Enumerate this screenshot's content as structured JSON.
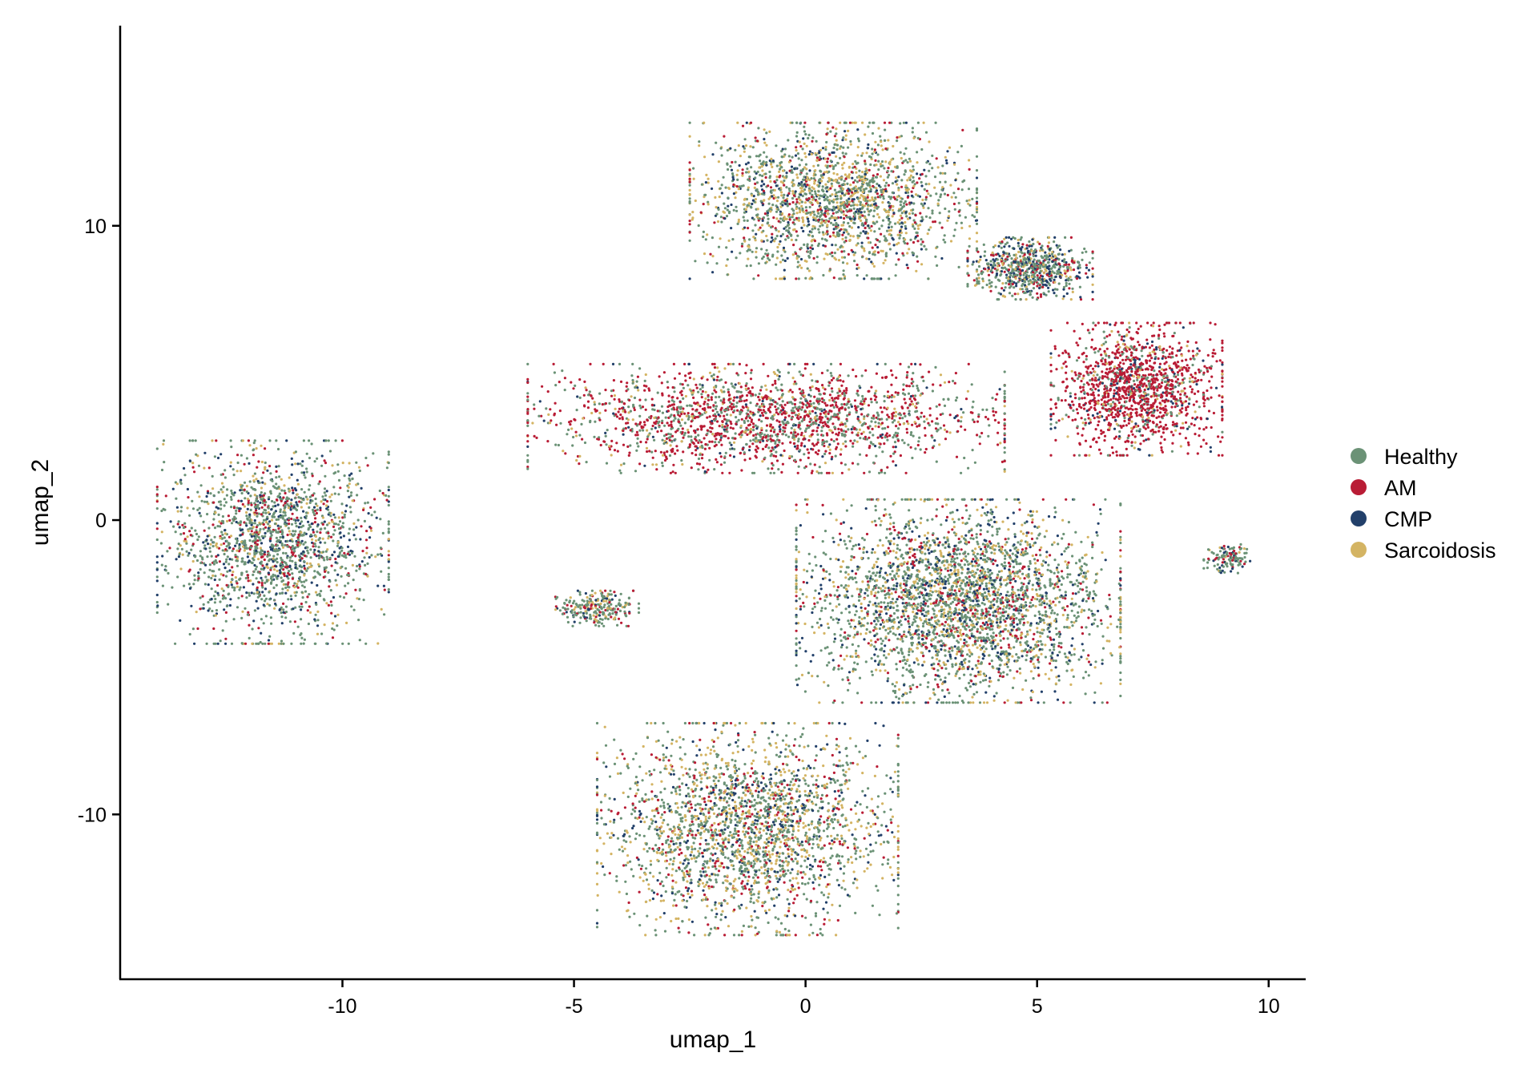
{
  "chart_data": {
    "type": "scatter",
    "title": "",
    "xlabel": "umap_1",
    "ylabel": "umap_2",
    "xlim": [
      -14.8,
      10.8
    ],
    "ylim": [
      -15.6,
      16.8
    ],
    "x_ticks": [
      -10,
      -5,
      0,
      5,
      10
    ],
    "x_tick_labels": [
      "-10",
      "-5",
      "0",
      "5",
      "10"
    ],
    "y_ticks": [
      -10,
      0,
      10
    ],
    "y_tick_labels": [
      "-10",
      "0",
      "10"
    ],
    "grid": false,
    "legend_placement": "right",
    "legend": [
      "Healthy",
      "AM",
      "CMP",
      "Sarcoidosis"
    ],
    "series": [
      {
        "name": "Healthy",
        "color": "#6b9276"
      },
      {
        "name": "AM",
        "color": "#b91c35"
      },
      {
        "name": "CMP",
        "color": "#22406a"
      },
      {
        "name": "Sarcoidosis",
        "color": "#d4b463"
      }
    ],
    "clusters": [
      {
        "x": [
          -14,
          -9
        ],
        "y": [
          -4.2,
          2.7
        ],
        "mix": [
          0.55,
          0.15,
          0.18,
          0.12
        ]
      },
      {
        "x": [
          -6,
          4.3
        ],
        "y": [
          1.6,
          5.3
        ],
        "mix": [
          0.35,
          0.5,
          0.05,
          0.1
        ]
      },
      {
        "x": [
          -2.5,
          3.7
        ],
        "y": [
          8.2,
          13.5
        ],
        "mix": [
          0.45,
          0.12,
          0.13,
          0.3
        ]
      },
      {
        "x": [
          3.5,
          6.2
        ],
        "y": [
          7.5,
          9.6
        ],
        "mix": [
          0.45,
          0.15,
          0.25,
          0.15
        ]
      },
      {
        "x": [
          5.3,
          9
        ],
        "y": [
          2.2,
          6.7
        ],
        "mix": [
          0.15,
          0.7,
          0.08,
          0.07
        ]
      },
      {
        "x": [
          -0.2,
          6.8
        ],
        "y": [
          -6.2,
          0.7
        ],
        "mix": [
          0.5,
          0.13,
          0.17,
          0.2
        ]
      },
      {
        "x": [
          -5.4,
          -3.6
        ],
        "y": [
          -3.6,
          -2.4
        ],
        "mix": [
          0.55,
          0.15,
          0.1,
          0.2
        ]
      },
      {
        "x": [
          -4.5,
          2
        ],
        "y": [
          -14.1,
          -6.9
        ],
        "mix": [
          0.45,
          0.12,
          0.13,
          0.3
        ]
      },
      {
        "x": [
          8.6,
          9.6
        ],
        "y": [
          -1.8,
          -0.8
        ],
        "mix": [
          0.6,
          0.1,
          0.2,
          0.1
        ]
      }
    ]
  }
}
